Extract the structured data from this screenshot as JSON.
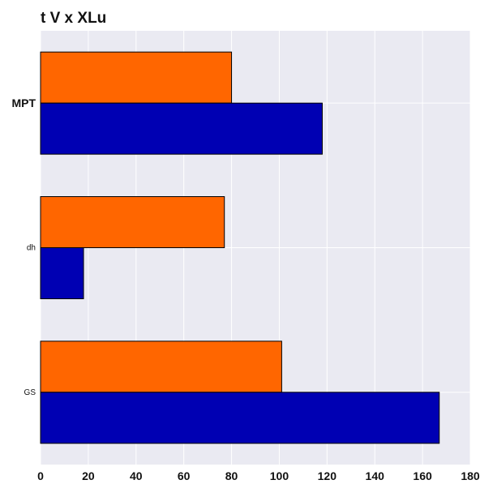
{
  "chart_data": {
    "type": "bar",
    "orientation": "horizontal",
    "title": "t  V x XLu",
    "xlabel": "",
    "ylabel": "",
    "categories": [
      "MPT",
      "dh",
      "GS"
    ],
    "series": [
      {
        "color": "#ff6600",
        "values": [
          80,
          77,
          101
        ]
      },
      {
        "color": "#0000b3",
        "values": [
          118,
          18,
          167
        ]
      }
    ],
    "xlim": [
      0,
      180
    ],
    "xticks": [
      0,
      20,
      40,
      60,
      80,
      100,
      120,
      140,
      160,
      180
    ],
    "grid": true,
    "legend": "none",
    "colors": {
      "plot_background": "#eaeaf2",
      "grid": "#ffffff",
      "bar_edge": "#000000"
    }
  }
}
